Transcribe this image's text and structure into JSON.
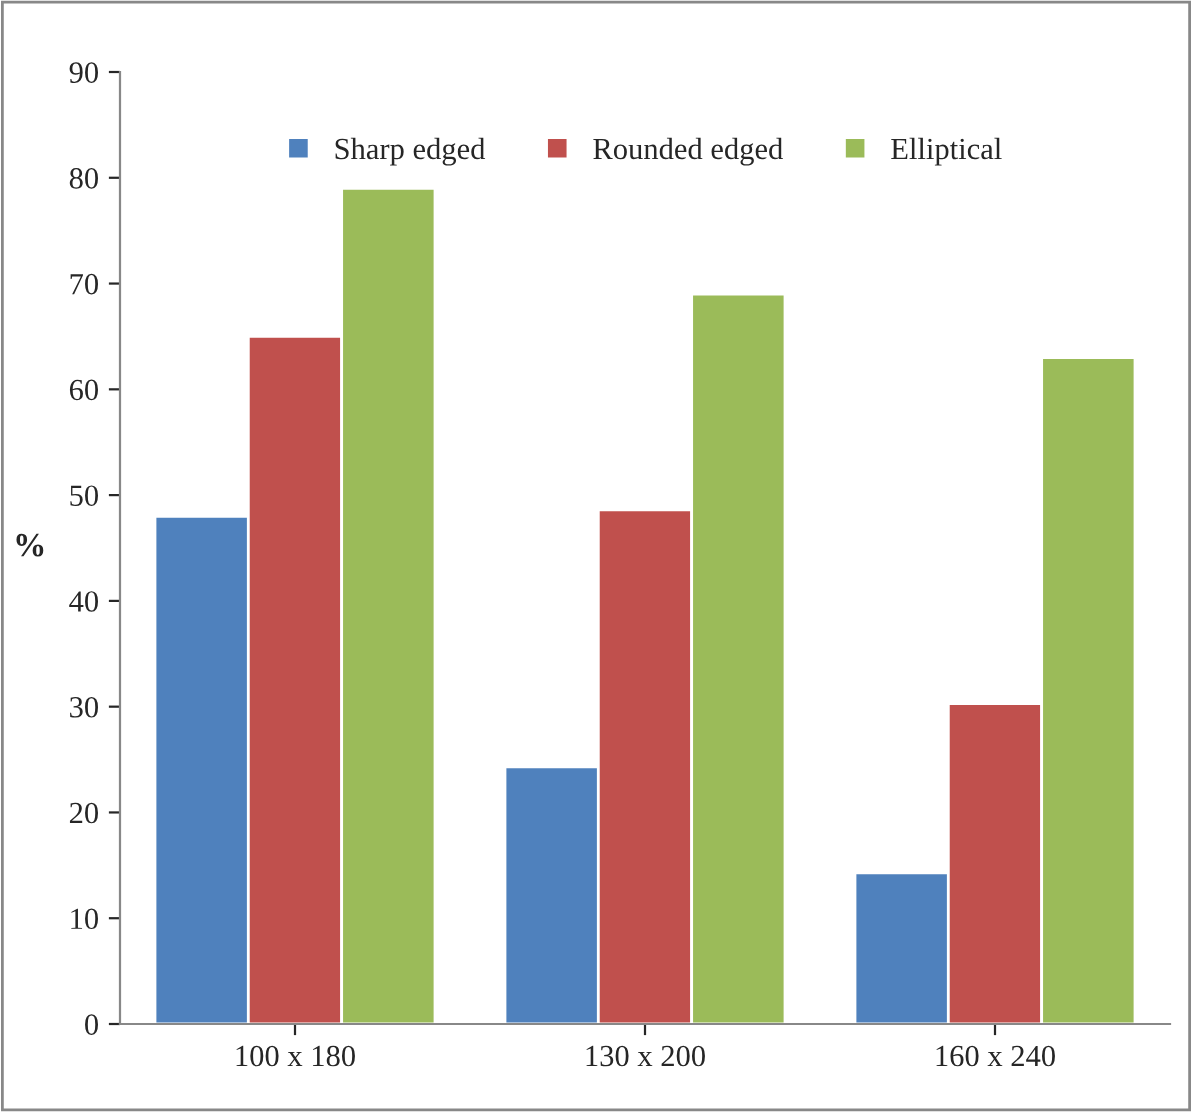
{
  "chart_data": {
    "type": "bar",
    "ylabel": "%",
    "categories": [
      "100 x 180",
      "130 x 200",
      "160 x 240"
    ],
    "series": [
      {
        "name": "Sharp edged",
        "color": "#4f81bd",
        "values": [
          48,
          24.3,
          14.3
        ]
      },
      {
        "name": "Rounded edged",
        "color": "#c0504d",
        "values": [
          65,
          48.6,
          30.3
        ]
      },
      {
        "name": "Elliptical",
        "color": "#9bbb59",
        "values": [
          79,
          69,
          63
        ]
      }
    ],
    "ylim": [
      0,
      90
    ],
    "yticks": [
      0,
      10,
      20,
      30,
      40,
      50,
      60,
      70,
      80,
      90
    ],
    "grid": false,
    "legend": "top"
  }
}
